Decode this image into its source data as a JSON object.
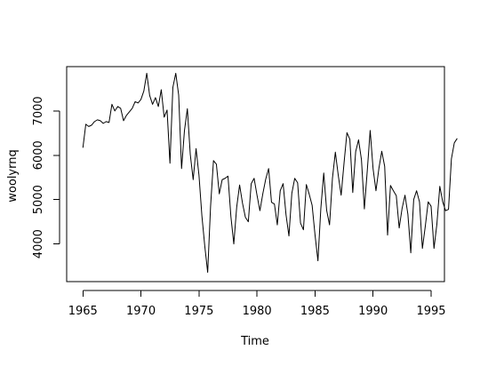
{
  "chart_data": {
    "type": "line",
    "title": "",
    "xlabel": "Time",
    "ylabel": "woolyrnq",
    "xlim": [
      1963.6,
      1996.15
    ],
    "ylim": [
      3150,
      8000
    ],
    "xticks": [
      1965,
      1970,
      1975,
      1980,
      1985,
      1990,
      1995
    ],
    "yticks": [
      4000,
      5000,
      6000,
      7000
    ],
    "grid": false,
    "legend": "none",
    "line_color": "#000000",
    "series": [
      {
        "values": [
          6170,
          6700,
          6650,
          6680,
          6760,
          6800,
          6780,
          6720,
          6760,
          6740,
          7150,
          7000,
          7100,
          7060,
          6780,
          6900,
          6980,
          7060,
          7210,
          7180,
          7260,
          7450,
          7850,
          7350,
          7150,
          7300,
          7100,
          7480,
          6860,
          7020,
          5820,
          7530,
          7850,
          7360,
          5700,
          6560,
          7050,
          6020,
          5450,
          6150,
          5550,
          4640,
          3950,
          3360,
          4850,
          5880,
          5800,
          5130,
          5450,
          5480,
          5530,
          4620,
          4000,
          4830,
          5330,
          4920,
          4600,
          4500,
          5360,
          5480,
          5100,
          4750,
          5130,
          5460,
          5700,
          4940,
          4900,
          4430,
          5200,
          5360,
          4660,
          4180,
          5140,
          5480,
          5380,
          4470,
          4320,
          5340,
          5120,
          4870,
          4200,
          3620,
          4800,
          5600,
          4760,
          4430,
          5480,
          6070,
          5550,
          5100,
          5830,
          6510,
          6360,
          5160,
          6080,
          6350,
          5900,
          4790,
          5650,
          6560,
          5700,
          5200,
          5700,
          6090,
          5750,
          4200,
          5320,
          5200,
          5090,
          4360,
          4800,
          5100,
          4670,
          3800,
          5000,
          5200,
          4950,
          3900,
          4400,
          4950,
          4850,
          3900,
          4450,
          5300,
          4950,
          4750,
          4780,
          5920,
          6280,
          6380
        ]
      }
    ]
  }
}
